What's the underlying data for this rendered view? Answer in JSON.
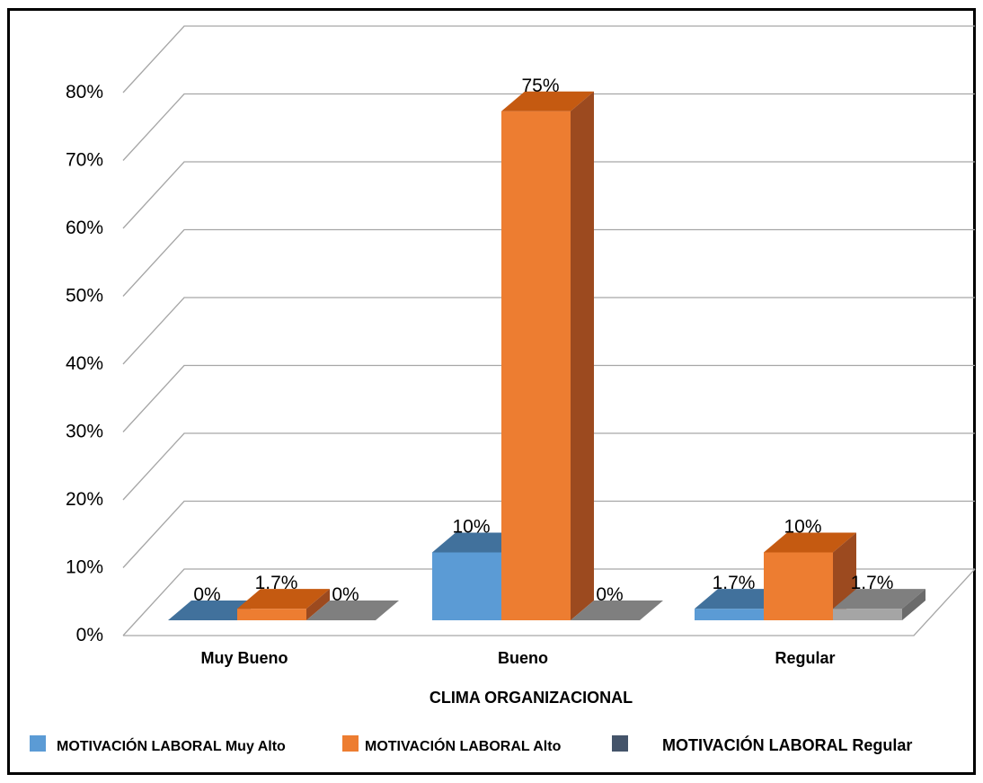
{
  "chart_data": {
    "type": "bar",
    "style": "3d-clustered-column",
    "categories": [
      "Muy Bueno",
      "Bueno",
      "Regular"
    ],
    "series": [
      {
        "name": "MOTIVACIÓN LABORAL  Muy Alto",
        "values": [
          0,
          10,
          1.7
        ],
        "labels": [
          "0%",
          "10%",
          "1.7%"
        ]
      },
      {
        "name": "MOTIVACIÓN LABORAL  Alto",
        "values": [
          1.7,
          75,
          10
        ],
        "labels": [
          "1.7%",
          "75%",
          "10%"
        ]
      },
      {
        "name": "MOTIVACIÓN LABORAL  Regular",
        "values": [
          0,
          0,
          1.7
        ],
        "labels": [
          "0%",
          "0%",
          "1.7%"
        ]
      }
    ],
    "xlabel": "CLIMA ORGANIZACIONAL",
    "ylabel": "",
    "ylim": [
      0,
      80
    ],
    "yticks": [
      "0%",
      "10%",
      "20%",
      "30%",
      "40%",
      "50%",
      "60%",
      "70%",
      "80%"
    ],
    "grid": true,
    "legend": "bottom"
  },
  "colors": {
    "series_front": [
      "#5b9bd5",
      "#ed7d31",
      "#a5a5a5"
    ],
    "series_top": [
      "#41719c",
      "#c55a11",
      "#7f7f7f"
    ],
    "series_side": [
      "#2e5c8a",
      "#9c4a1f",
      "#6b6b6b"
    ],
    "legend_regular": "#44546a",
    "grid": "#a6a6a6",
    "frame": "#000000"
  }
}
